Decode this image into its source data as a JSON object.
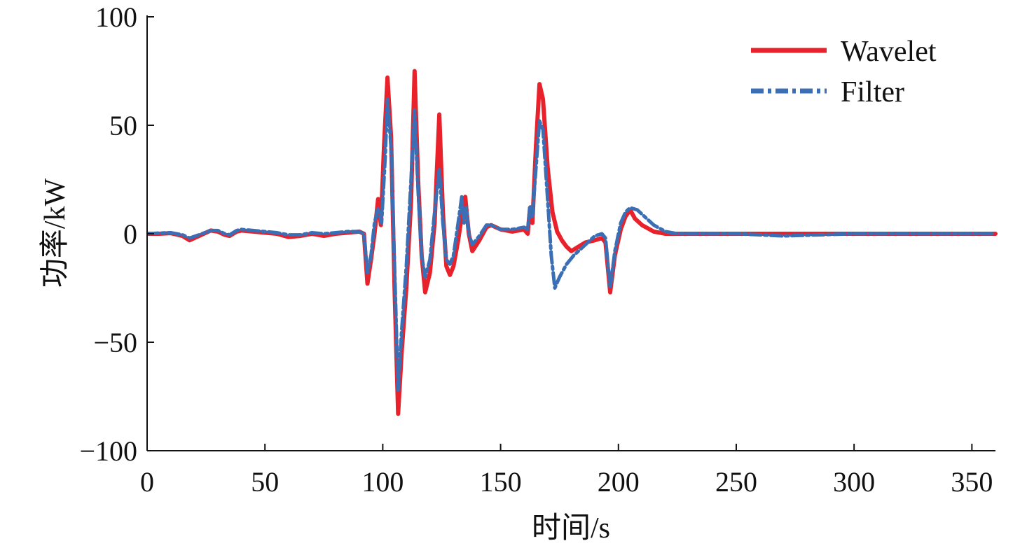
{
  "chart_data": {
    "type": "line",
    "title": "",
    "xlabel": "时间/s",
    "ylabel": "功率/kW",
    "xlim": [
      0,
      360
    ],
    "ylim": [
      -100,
      100
    ],
    "xticks": [
      0,
      50,
      100,
      150,
      200,
      250,
      300,
      350
    ],
    "yticks": [
      100,
      50,
      0,
      -50,
      -100
    ],
    "xtick_labels": [
      "0",
      "50",
      "100",
      "150",
      "200",
      "250",
      "300",
      "350"
    ],
    "ytick_labels": [
      "100",
      "50",
      "0",
      "−50",
      "−100"
    ],
    "grid": false,
    "legend_position": "top-right",
    "series": [
      {
        "name": "Wavelet",
        "color": "#e8212b",
        "style": "solid",
        "points": [
          [
            0,
            0
          ],
          [
            5,
            0
          ],
          [
            10,
            0.3
          ],
          [
            15,
            -1
          ],
          [
            18,
            -3
          ],
          [
            22,
            -1
          ],
          [
            27,
            1.5
          ],
          [
            30,
            1
          ],
          [
            33,
            -0.5
          ],
          [
            35,
            -1
          ],
          [
            38,
            1
          ],
          [
            40,
            1.5
          ],
          [
            45,
            1
          ],
          [
            50,
            0.5
          ],
          [
            55,
            0
          ],
          [
            60,
            -1.5
          ],
          [
            65,
            -1
          ],
          [
            70,
            0
          ],
          [
            75,
            -1
          ],
          [
            80,
            0
          ],
          [
            85,
            0.5
          ],
          [
            90,
            1
          ],
          [
            92,
            0
          ],
          [
            93.5,
            -23
          ],
          [
            95,
            -12
          ],
          [
            96.5,
            0
          ],
          [
            98,
            16
          ],
          [
            99.2,
            4
          ],
          [
            100.5,
            40
          ],
          [
            102,
            72
          ],
          [
            103.5,
            45
          ],
          [
            105,
            -25
          ],
          [
            106.5,
            -83
          ],
          [
            108,
            -55
          ],
          [
            110,
            -25
          ],
          [
            112,
            15
          ],
          [
            113.5,
            75
          ],
          [
            115,
            25
          ],
          [
            116.5,
            -10
          ],
          [
            118,
            -27
          ],
          [
            120,
            -18
          ],
          [
            122,
            5
          ],
          [
            124,
            55
          ],
          [
            125.5,
            10
          ],
          [
            127,
            -15
          ],
          [
            128.5,
            -19
          ],
          [
            130,
            -15
          ],
          [
            132,
            -3
          ],
          [
            133.5,
            8
          ],
          [
            135,
            17
          ],
          [
            136.5,
            0
          ],
          [
            138,
            -8
          ],
          [
            141,
            -3
          ],
          [
            144,
            3
          ],
          [
            146,
            4
          ],
          [
            150,
            2
          ],
          [
            155,
            1
          ],
          [
            160,
            2
          ],
          [
            161.5,
            0
          ],
          [
            162.5,
            12
          ],
          [
            163.5,
            5
          ],
          [
            165,
            40
          ],
          [
            166.5,
            69
          ],
          [
            168,
            62
          ],
          [
            170,
            30
          ],
          [
            172,
            10
          ],
          [
            174,
            1
          ],
          [
            176,
            -3
          ],
          [
            178,
            -6
          ],
          [
            180,
            -8
          ],
          [
            183,
            -6
          ],
          [
            186,
            -4
          ],
          [
            190,
            -3
          ],
          [
            193,
            -2
          ],
          [
            194.5,
            -4
          ],
          [
            196.5,
            -27
          ],
          [
            198.5,
            -10
          ],
          [
            201,
            2
          ],
          [
            203,
            8
          ],
          [
            205,
            11
          ],
          [
            207,
            7
          ],
          [
            210,
            4
          ],
          [
            215,
            1
          ],
          [
            220,
            0
          ],
          [
            230,
            0
          ],
          [
            250,
            0
          ],
          [
            270,
            0
          ],
          [
            300,
            0
          ],
          [
            330,
            0
          ],
          [
            360,
            0
          ]
        ]
      },
      {
        "name": "Filter",
        "color": "#3b6fb5",
        "style": "dash-dot",
        "points": [
          [
            0,
            0
          ],
          [
            5,
            0.3
          ],
          [
            10,
            0.5
          ],
          [
            15,
            -0.5
          ],
          [
            18,
            -2
          ],
          [
            22,
            -0.5
          ],
          [
            27,
            1.5
          ],
          [
            30,
            1.5
          ],
          [
            33,
            0
          ],
          [
            35,
            -0.5
          ],
          [
            38,
            1.5
          ],
          [
            40,
            2
          ],
          [
            45,
            1.5
          ],
          [
            50,
            1
          ],
          [
            55,
            0.5
          ],
          [
            60,
            -0.5
          ],
          [
            65,
            -0.5
          ],
          [
            70,
            0.5
          ],
          [
            75,
            0
          ],
          [
            80,
            0.5
          ],
          [
            85,
            1
          ],
          [
            90,
            1
          ],
          [
            92,
            0
          ],
          [
            93.5,
            -18
          ],
          [
            95,
            -10
          ],
          [
            96.5,
            5
          ],
          [
            98,
            12
          ],
          [
            99.5,
            5
          ],
          [
            101,
            35
          ],
          [
            102,
            62
          ],
          [
            103.5,
            40
          ],
          [
            105,
            -15
          ],
          [
            106.5,
            -72
          ],
          [
            108,
            -45
          ],
          [
            110,
            -15
          ],
          [
            112,
            25
          ],
          [
            113.5,
            57
          ],
          [
            115,
            20
          ],
          [
            116.5,
            -10
          ],
          [
            118,
            -20
          ],
          [
            120,
            -12
          ],
          [
            122,
            10
          ],
          [
            124,
            30
          ],
          [
            125.5,
            5
          ],
          [
            127,
            -12
          ],
          [
            128.5,
            -14
          ],
          [
            130,
            -10
          ],
          [
            132,
            5
          ],
          [
            133.5,
            17
          ],
          [
            134.5,
            5
          ],
          [
            135.5,
            12
          ],
          [
            136.5,
            0
          ],
          [
            138,
            -5
          ],
          [
            141,
            -1
          ],
          [
            144,
            4
          ],
          [
            146,
            4
          ],
          [
            150,
            2
          ],
          [
            155,
            2
          ],
          [
            160,
            3
          ],
          [
            161.5,
            2
          ],
          [
            162.5,
            13
          ],
          [
            163.5,
            8
          ],
          [
            165,
            30
          ],
          [
            166.5,
            52
          ],
          [
            168,
            48
          ],
          [
            170,
            15
          ],
          [
            171.5,
            -10
          ],
          [
            173,
            -25
          ],
          [
            175,
            -20
          ],
          [
            178,
            -14
          ],
          [
            181,
            -10
          ],
          [
            184,
            -7
          ],
          [
            187,
            -4
          ],
          [
            190,
            -1
          ],
          [
            193,
            0
          ],
          [
            194.5,
            -2
          ],
          [
            196.5,
            -25
          ],
          [
            198.5,
            -8
          ],
          [
            201,
            5
          ],
          [
            203,
            10
          ],
          [
            205,
            12
          ],
          [
            208,
            11
          ],
          [
            211,
            8
          ],
          [
            215,
            4
          ],
          [
            220,
            1
          ],
          [
            225,
            0
          ],
          [
            230,
            0
          ],
          [
            250,
            0
          ],
          [
            270,
            -1
          ],
          [
            300,
            0
          ],
          [
            330,
            0
          ],
          [
            360,
            0
          ]
        ]
      }
    ]
  }
}
